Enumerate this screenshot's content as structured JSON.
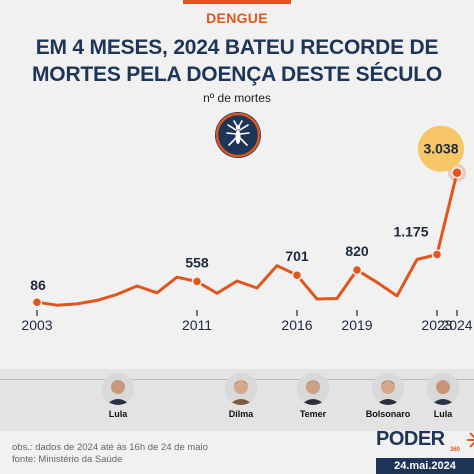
{
  "header": {
    "kicker": "DENGUE",
    "title_line1": "EM 4 MESES, 2024 BATEU RECORDE DE",
    "title_line2": "MORTES PELA DOENÇA DESTE SÉCULO",
    "subtitle": "nº de mortes"
  },
  "colors": {
    "accent": "#e0561c",
    "title": "#1f3558",
    "highlight_badge": "#f6c667",
    "icon_bg": "#1f3558"
  },
  "icons": {
    "mosquito": "mosquito-icon",
    "logo": "sunburst-icon"
  },
  "chart_data": {
    "type": "line",
    "x": [
      2003,
      2004,
      2005,
      2006,
      2007,
      2008,
      2009,
      2010,
      2011,
      2012,
      2013,
      2014,
      2015,
      2016,
      2017,
      2018,
      2019,
      2020,
      2021,
      2022,
      2023,
      2024
    ],
    "series": [
      {
        "values": [
          86,
          19,
          48,
          127,
          265,
          456,
          300,
          656,
          558,
          290,
          570,
          410,
          920,
          701,
          160,
          170,
          820,
          540,
          230,
          1060,
          1175,
          3038
        ]
      }
    ],
    "labeled_points": [
      {
        "year": 2003,
        "text": "86"
      },
      {
        "year": 2011,
        "text": "558"
      },
      {
        "year": 2016,
        "text": "701"
      },
      {
        "year": 2019,
        "text": "820"
      },
      {
        "year": 2023,
        "text": "1.175"
      },
      {
        "year": 2024,
        "text": "3.038"
      }
    ],
    "x_tick_labels": [
      "2003",
      "2011",
      "2016",
      "2019",
      "2023",
      "2024"
    ],
    "x_ticks": [
      2003,
      2011,
      2016,
      2019,
      2023,
      2024
    ],
    "ylim": [
      0,
      3100
    ],
    "grid": false,
    "legend": "none",
    "highlight": {
      "year": 2024,
      "badge_color": "#f6c667"
    }
  },
  "presidents": [
    {
      "name": "Lula"
    },
    {
      "name": "Dilma"
    },
    {
      "name": "Temer"
    },
    {
      "name": "Bolsonaro"
    },
    {
      "name": "Lula"
    }
  ],
  "footer": {
    "obs": "obs.: dados de 2024 até às 16h de 24 de maio",
    "fonte": "fonte: Ministério da Saúde"
  },
  "brand": {
    "name": "PODER",
    "sub": "360",
    "date": "24.mai.2024"
  }
}
